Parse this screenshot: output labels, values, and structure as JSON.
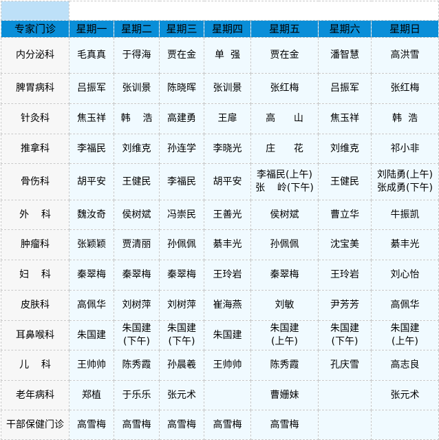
{
  "colors": {
    "header_bg": "#0a8ed8",
    "cell_bg": "#f0faff",
    "dept_bg": "#f7f7f7",
    "selected_cell": "#bde0f8"
  },
  "header": [
    "专家门诊",
    "星期一",
    "星期二",
    "星期三",
    "星期四",
    "星期五",
    "星期六",
    "星期日"
  ],
  "rows": [
    [
      "内分泌科",
      "毛真真",
      "于得海",
      "贾在金",
      "单  强",
      "贾在金",
      "潘智慧",
      "高洪雪"
    ],
    [
      "脾胃病科",
      "吕振军",
      "张训景",
      "陈晓晖",
      "张训景",
      "张红梅",
      "吕振军",
      "张红梅"
    ],
    [
      "针灸科",
      "焦玉祥",
      "韩    浩",
      "高建勇",
      "王扉",
      "高      山",
      "焦玉祥",
      "韩  浩"
    ],
    [
      "推拿科",
      "李福民",
      "刘维克",
      "孙连学",
      "李晓光",
      "庄      花",
      "刘维克",
      "祁小非"
    ],
    [
      "骨伤科",
      "胡平安",
      "王健民",
      "李福民",
      "胡平安",
      "李福民(上午)\n张    岭(下午)",
      "王健民",
      "刘陆勇(上午)\n张成勇(下午)"
    ],
    [
      "外    科",
      "魏汝奇",
      "侯树斌",
      "冯崇民",
      "王善光",
      "侯树斌",
      "曹立华",
      "牛振凯"
    ],
    [
      "肿瘤科",
      "张颖颖",
      "贾清丽",
      "孙佩佩",
      "綦丰光",
      "孙佩佩",
      "沈宝美",
      "綦丰光"
    ],
    [
      "妇    科",
      "秦翠梅",
      "秦翠梅",
      "秦翠梅",
      "王玲岩",
      "秦翠梅",
      "王玲岩",
      "刘心怡"
    ],
    [
      "皮肤科",
      "高佩华",
      "刘树萍",
      "刘树萍",
      "崔海燕",
      "刘敏",
      "尹芳芳",
      "高佩华"
    ],
    [
      "耳鼻喉科",
      "朱国建",
      "朱国建\n(下午)",
      "朱国建\n(下午)",
      "朱国建",
      "朱国建\n(上午)",
      "朱国建\n(下午)",
      "朱国建\n(上午)"
    ],
    [
      "儿    科",
      "王帅帅",
      "陈秀霞",
      "孙晨羲",
      "王帅帅",
      "陈秀霞",
      "孔庆雪",
      "高志良"
    ],
    [
      "老年病科",
      "郑植",
      "于乐乐",
      "张元术",
      "",
      "曹姗妹",
      "",
      "张元术"
    ],
    [
      "干部保健门诊",
      "高雪梅",
      "高雪梅",
      "高雪梅",
      "高雪梅",
      "高雪梅",
      "",
      ""
    ]
  ]
}
